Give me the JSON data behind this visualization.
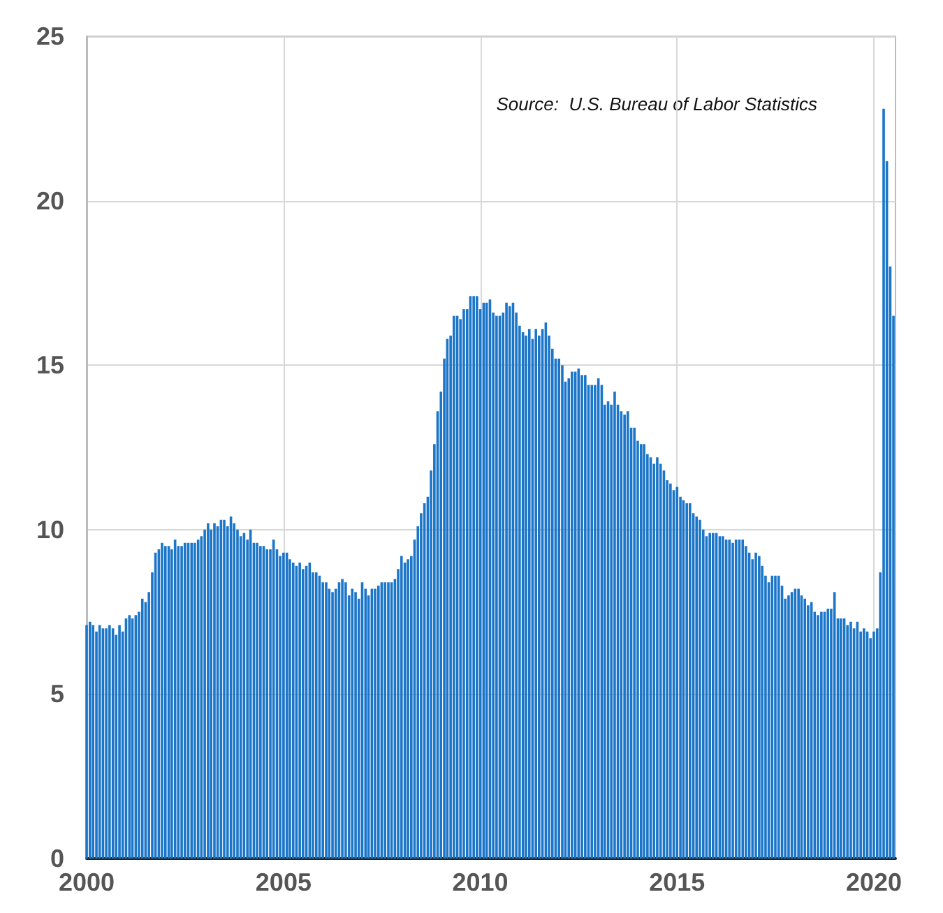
{
  "chart_data": {
    "type": "bar",
    "annotations": [
      "Source:  U.S. Bureau of Labor Statistics"
    ],
    "x": [
      "2000-01",
      "2000-02",
      "2000-03",
      "2000-04",
      "2000-05",
      "2000-06",
      "2000-07",
      "2000-08",
      "2000-09",
      "2000-10",
      "2000-11",
      "2000-12",
      "2001-01",
      "2001-02",
      "2001-03",
      "2001-04",
      "2001-05",
      "2001-06",
      "2001-07",
      "2001-08",
      "2001-09",
      "2001-10",
      "2001-11",
      "2001-12",
      "2002-01",
      "2002-02",
      "2002-03",
      "2002-04",
      "2002-05",
      "2002-06",
      "2002-07",
      "2002-08",
      "2002-09",
      "2002-10",
      "2002-11",
      "2002-12",
      "2003-01",
      "2003-02",
      "2003-03",
      "2003-04",
      "2003-05",
      "2003-06",
      "2003-07",
      "2003-08",
      "2003-09",
      "2003-10",
      "2003-11",
      "2003-12",
      "2004-01",
      "2004-02",
      "2004-03",
      "2004-04",
      "2004-05",
      "2004-06",
      "2004-07",
      "2004-08",
      "2004-09",
      "2004-10",
      "2004-11",
      "2004-12",
      "2005-01",
      "2005-02",
      "2005-03",
      "2005-04",
      "2005-05",
      "2005-06",
      "2005-07",
      "2005-08",
      "2005-09",
      "2005-10",
      "2005-11",
      "2005-12",
      "2006-01",
      "2006-02",
      "2006-03",
      "2006-04",
      "2006-05",
      "2006-06",
      "2006-07",
      "2006-08",
      "2006-09",
      "2006-10",
      "2006-11",
      "2006-12",
      "2007-01",
      "2007-02",
      "2007-03",
      "2007-04",
      "2007-05",
      "2007-06",
      "2007-07",
      "2007-08",
      "2007-09",
      "2007-10",
      "2007-11",
      "2007-12",
      "2008-01",
      "2008-02",
      "2008-03",
      "2008-04",
      "2008-05",
      "2008-06",
      "2008-07",
      "2008-08",
      "2008-09",
      "2008-10",
      "2008-11",
      "2008-12",
      "2009-01",
      "2009-02",
      "2009-03",
      "2009-04",
      "2009-05",
      "2009-06",
      "2009-07",
      "2009-08",
      "2009-09",
      "2009-10",
      "2009-11",
      "2009-12",
      "2010-01",
      "2010-02",
      "2010-03",
      "2010-04",
      "2010-05",
      "2010-06",
      "2010-07",
      "2010-08",
      "2010-09",
      "2010-10",
      "2010-11",
      "2010-12",
      "2011-01",
      "2011-02",
      "2011-03",
      "2011-04",
      "2011-05",
      "2011-06",
      "2011-07",
      "2011-08",
      "2011-09",
      "2011-10",
      "2011-11",
      "2011-12",
      "2012-01",
      "2012-02",
      "2012-03",
      "2012-04",
      "2012-05",
      "2012-06",
      "2012-07",
      "2012-08",
      "2012-09",
      "2012-10",
      "2012-11",
      "2012-12",
      "2013-01",
      "2013-02",
      "2013-03",
      "2013-04",
      "2013-05",
      "2013-06",
      "2013-07",
      "2013-08",
      "2013-09",
      "2013-10",
      "2013-11",
      "2013-12",
      "2014-01",
      "2014-02",
      "2014-03",
      "2014-04",
      "2014-05",
      "2014-06",
      "2014-07",
      "2014-08",
      "2014-09",
      "2014-10",
      "2014-11",
      "2014-12",
      "2015-01",
      "2015-02",
      "2015-03",
      "2015-04",
      "2015-05",
      "2015-06",
      "2015-07",
      "2015-08",
      "2015-09",
      "2015-10",
      "2015-11",
      "2015-12",
      "2016-01",
      "2016-02",
      "2016-03",
      "2016-04",
      "2016-05",
      "2016-06",
      "2016-07",
      "2016-08",
      "2016-09",
      "2016-10",
      "2016-11",
      "2016-12",
      "2017-01",
      "2017-02",
      "2017-03",
      "2017-04",
      "2017-05",
      "2017-06",
      "2017-07",
      "2017-08",
      "2017-09",
      "2017-10",
      "2017-11",
      "2017-12",
      "2018-01",
      "2018-02",
      "2018-03",
      "2018-04",
      "2018-05",
      "2018-06",
      "2018-07",
      "2018-08",
      "2018-09",
      "2018-10",
      "2018-11",
      "2018-12",
      "2019-01",
      "2019-02",
      "2019-03",
      "2019-04",
      "2019-05",
      "2019-06",
      "2019-07",
      "2019-08",
      "2019-09",
      "2019-10",
      "2019-11",
      "2019-12",
      "2020-01",
      "2020-02",
      "2020-03",
      "2020-04",
      "2020-05",
      "2020-06",
      "2020-07"
    ],
    "values": [
      7.1,
      7.2,
      7.1,
      6.9,
      7.1,
      7.0,
      7.0,
      7.1,
      7.0,
      6.8,
      7.1,
      6.9,
      7.3,
      7.4,
      7.3,
      7.4,
      7.5,
      7.9,
      7.8,
      8.1,
      8.7,
      9.3,
      9.4,
      9.6,
      9.5,
      9.5,
      9.4,
      9.7,
      9.5,
      9.5,
      9.6,
      9.6,
      9.6,
      9.6,
      9.7,
      9.8,
      10.0,
      10.2,
      10.0,
      10.2,
      10.1,
      10.3,
      10.3,
      10.1,
      10.4,
      10.2,
      10.0,
      9.8,
      9.9,
      9.7,
      10.0,
      9.6,
      9.6,
      9.5,
      9.5,
      9.4,
      9.4,
      9.7,
      9.4,
      9.2,
      9.3,
      9.3,
      9.1,
      9.0,
      8.9,
      9.0,
      8.8,
      8.9,
      9.0,
      8.7,
      8.7,
      8.6,
      8.4,
      8.4,
      8.2,
      8.1,
      8.2,
      8.4,
      8.5,
      8.4,
      8.0,
      8.2,
      8.1,
      7.9,
      8.4,
      8.2,
      8.0,
      8.2,
      8.2,
      8.3,
      8.4,
      8.4,
      8.4,
      8.4,
      8.5,
      8.8,
      9.2,
      9.0,
      9.1,
      9.2,
      9.7,
      10.1,
      10.5,
      10.8,
      11.0,
      11.8,
      12.6,
      13.6,
      14.2,
      15.2,
      15.8,
      15.9,
      16.5,
      16.5,
      16.4,
      16.7,
      16.7,
      17.1,
      17.1,
      17.1,
      16.7,
      16.9,
      16.9,
      17.0,
      16.6,
      16.5,
      16.5,
      16.6,
      16.9,
      16.8,
      16.9,
      16.6,
      16.2,
      16.0,
      15.9,
      16.1,
      15.8,
      16.1,
      15.9,
      16.1,
      16.3,
      15.9,
      15.5,
      15.2,
      15.2,
      15.0,
      14.5,
      14.6,
      14.8,
      14.8,
      14.9,
      14.7,
      14.7,
      14.4,
      14.4,
      14.4,
      14.6,
      14.4,
      13.8,
      13.9,
      13.8,
      14.2,
      13.8,
      13.6,
      13.5,
      13.6,
      13.1,
      13.1,
      12.7,
      12.6,
      12.6,
      12.3,
      12.2,
      12.0,
      12.2,
      12.0,
      11.8,
      11.5,
      11.4,
      11.2,
      11.3,
      11.0,
      10.9,
      10.8,
      10.8,
      10.5,
      10.4,
      10.3,
      10.0,
      9.8,
      9.9,
      9.9,
      9.9,
      9.8,
      9.8,
      9.7,
      9.7,
      9.6,
      9.7,
      9.7,
      9.7,
      9.5,
      9.3,
      9.1,
      9.3,
      9.2,
      8.9,
      8.6,
      8.4,
      8.6,
      8.6,
      8.6,
      8.3,
      7.9,
      8.0,
      8.1,
      8.2,
      8.2,
      8.0,
      7.9,
      7.7,
      7.8,
      7.5,
      7.4,
      7.5,
      7.5,
      7.6,
      7.6,
      8.1,
      7.3,
      7.3,
      7.3,
      7.1,
      7.2,
      7.0,
      7.2,
      6.9,
      7.0,
      6.9,
      6.7,
      6.9,
      7.0,
      8.7,
      22.8,
      21.2,
      18.0,
      16.5
    ],
    "color": "#1b75c8",
    "xlim": [
      "2000-01",
      "2020-07-20"
    ],
    "xticks": [
      "2000",
      "2005",
      "2010",
      "2015",
      "2020"
    ],
    "ylim": [
      0,
      25
    ],
    "yticks": [
      0,
      5,
      10,
      15,
      20,
      25
    ],
    "grid": true
  }
}
